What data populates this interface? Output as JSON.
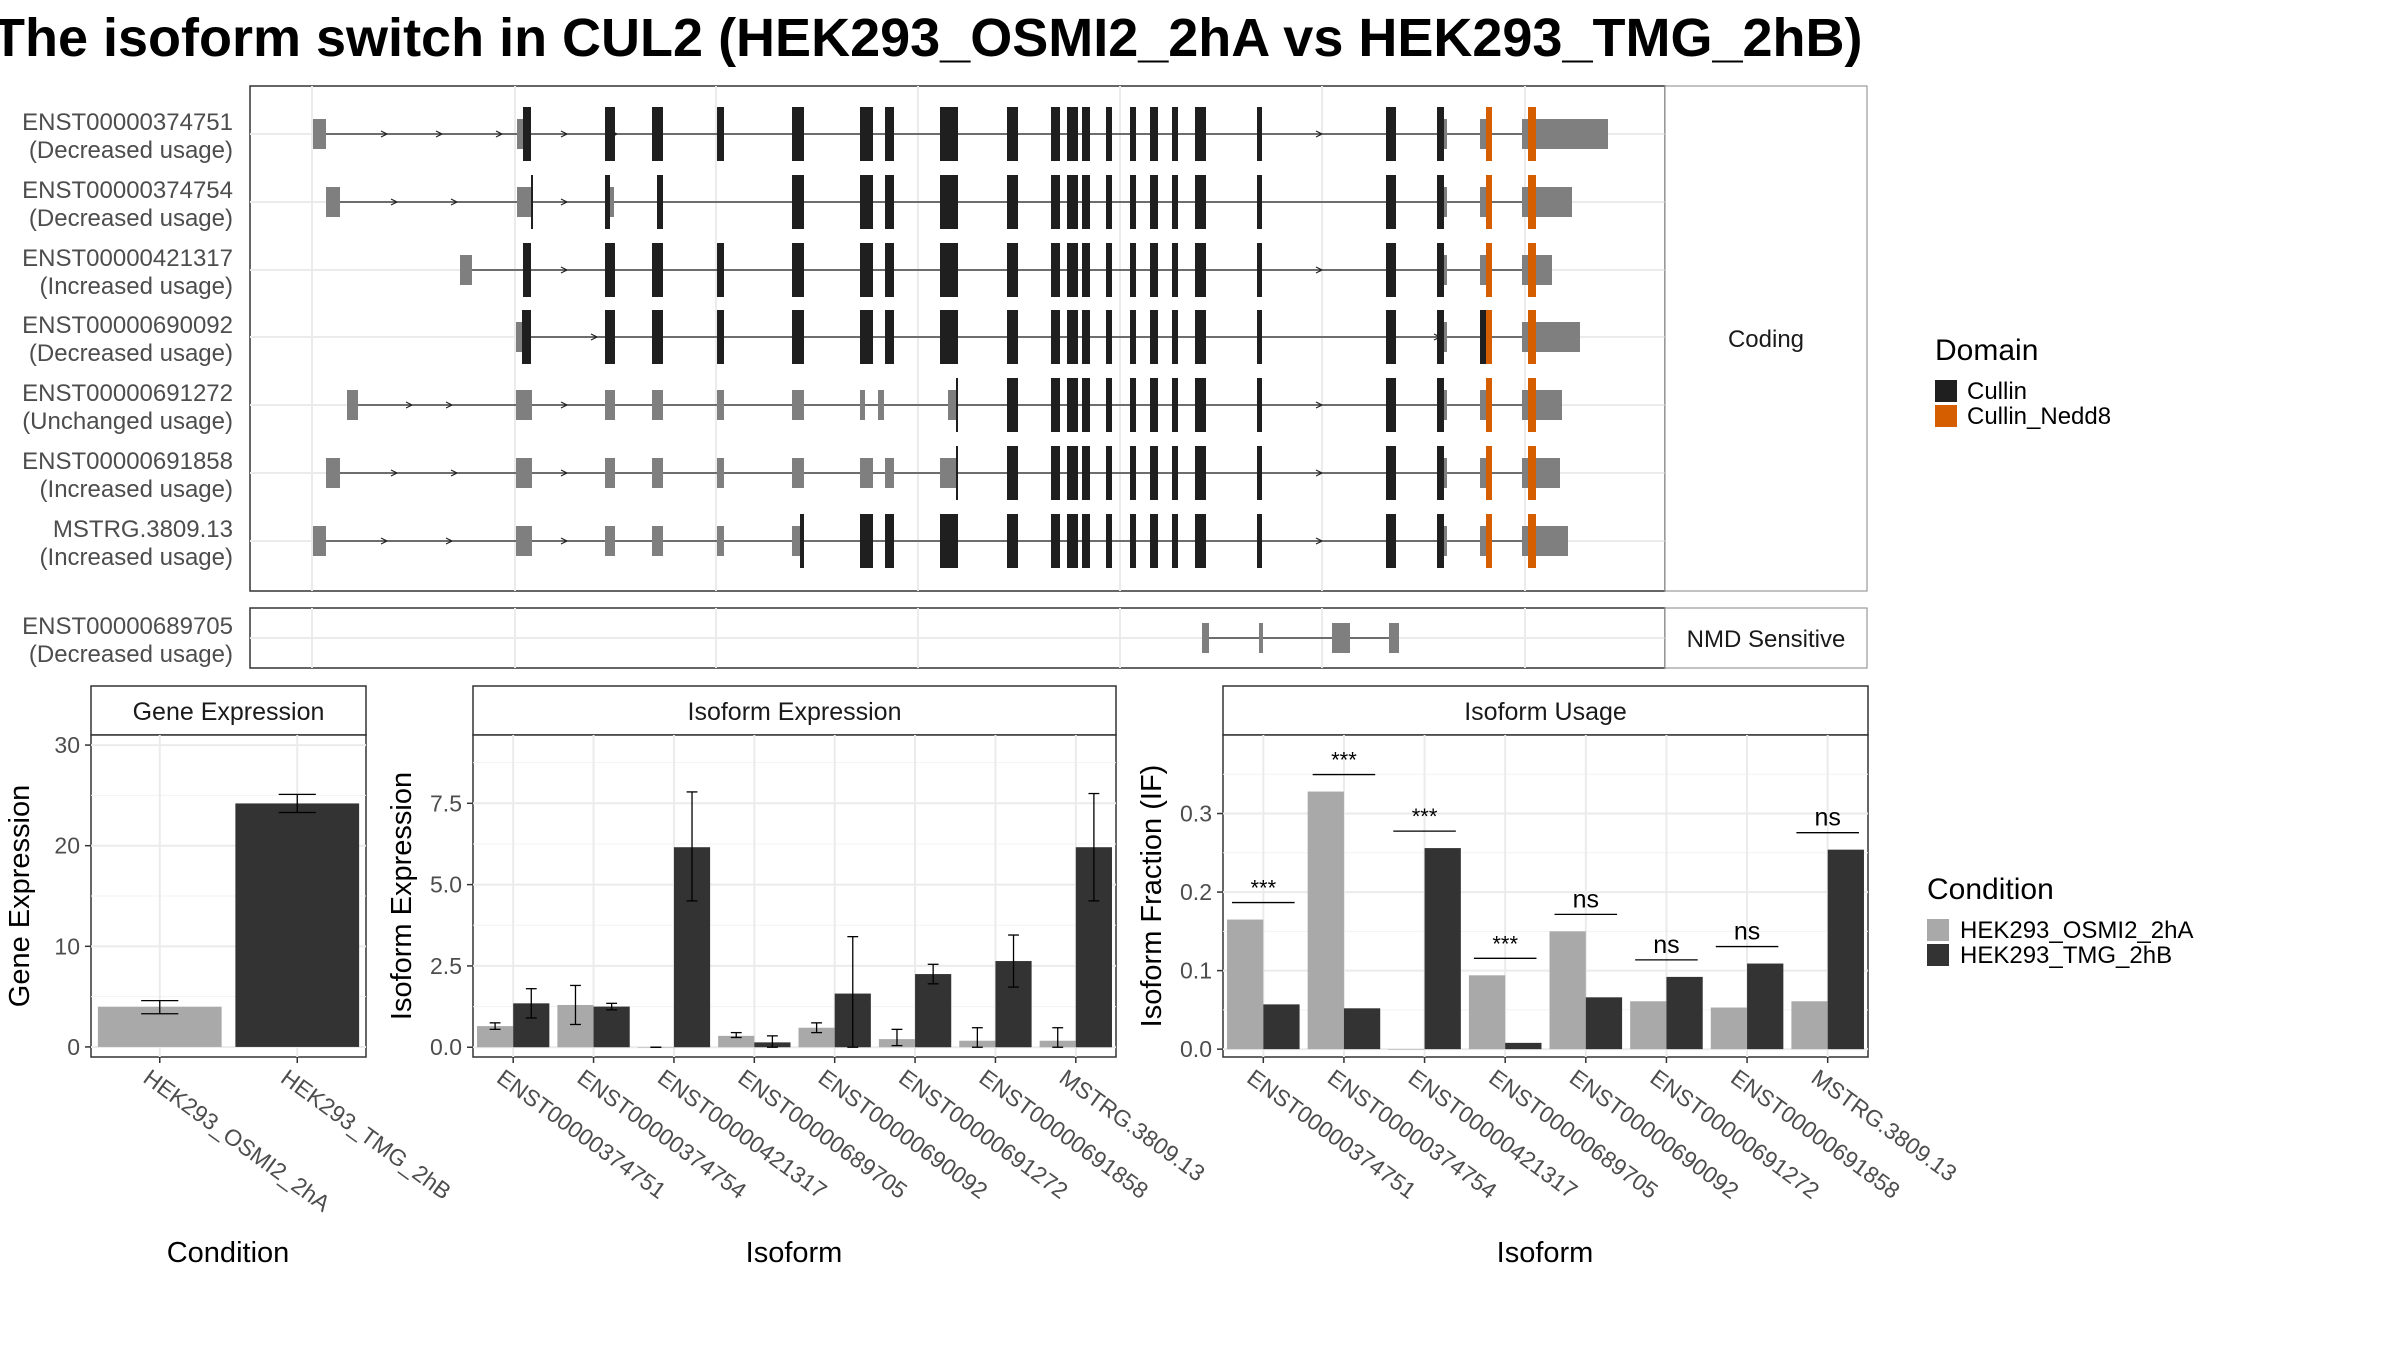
{
  "title": "The isoform switch in CUL2 (HEK293_OSMI2_2hA vs HEK293_TMG_2hB)",
  "colors": {
    "cullin": "#1f1f1f",
    "cullin_nedd8": "#d55e00",
    "noncoding_exon": "#7f7f7f",
    "cond_a": "#a9a9a9",
    "cond_b": "#333333"
  },
  "chart_data": [
    {
      "type": "gene-structure",
      "panels": [
        {
          "strip": "Coding",
          "transcripts": [
            {
              "id": "ENST00000374751",
              "usage": "(Decreased usage)"
            },
            {
              "id": "ENST00000374754",
              "usage": "(Decreased usage)"
            },
            {
              "id": "ENST00000421317",
              "usage": "(Increased usage)"
            },
            {
              "id": "ENST00000690092",
              "usage": "(Decreased usage)"
            },
            {
              "id": "ENST00000691272",
              "usage": "(Unchanged usage)"
            },
            {
              "id": "ENST00000691858",
              "usage": "(Increased usage)"
            },
            {
              "id": "MSTRG.3809.13",
              "usage": "(Increased usage)"
            }
          ]
        },
        {
          "strip": "NMD Sensitive",
          "transcripts": [
            {
              "id": "ENST00000689705",
              "usage": "(Decreased usage)"
            }
          ]
        }
      ],
      "legend": {
        "title": "Domain",
        "items": [
          "Cullin",
          "Cullin_Nedd8"
        ],
        "position": "right"
      }
    },
    {
      "type": "bar",
      "title": "Gene Expression",
      "xlabel": "Condition",
      "ylabel": "Gene Expression",
      "categories": [
        "HEK293_OSMI2_2hA",
        "HEK293_TMG_2hB"
      ],
      "values": [
        4.0,
        24.2
      ],
      "errors": [
        [
          3.3,
          4.6
        ],
        [
          23.3,
          25.1
        ]
      ],
      "ylim": [
        -1,
        31
      ],
      "yticks": [
        0,
        10,
        20,
        30
      ]
    },
    {
      "type": "bar",
      "title": "Isoform Expression",
      "xlabel": "Isoform",
      "ylabel": "Isoform Expression",
      "categories": [
        "ENST00000374751",
        "ENST00000374754",
        "ENST00000421317",
        "ENST00000689705",
        "ENST00000690092",
        "ENST00000691272",
        "ENST00000691858",
        "MSTRG.3809.13"
      ],
      "series": [
        {
          "name": "HEK293_OSMI2_2hA",
          "values": [
            0.65,
            1.3,
            0.0,
            0.35,
            0.6,
            0.25,
            0.2,
            0.2
          ],
          "errors": [
            [
              0.55,
              0.75
            ],
            [
              0.7,
              1.9
            ],
            [
              0.0,
              0.0
            ],
            [
              0.3,
              0.45
            ],
            [
              0.45,
              0.75
            ],
            [
              0.05,
              0.55
            ],
            [
              0.0,
              0.6
            ],
            [
              0.0,
              0.6
            ]
          ]
        },
        {
          "name": "HEK293_TMG_2hB",
          "values": [
            1.35,
            1.25,
            6.15,
            0.15,
            1.65,
            2.25,
            2.65,
            6.15
          ],
          "errors": [
            [
              0.9,
              1.8
            ],
            [
              1.15,
              1.35
            ],
            [
              4.5,
              7.85
            ],
            [
              0.0,
              0.35
            ],
            [
              0.0,
              3.4
            ],
            [
              1.95,
              2.55
            ],
            [
              1.85,
              3.45
            ],
            [
              4.5,
              7.8
            ]
          ]
        }
      ],
      "ylim": [
        -0.3,
        9.6
      ],
      "yticks": [
        "0.0",
        "2.5",
        "5.0",
        "7.5"
      ]
    },
    {
      "type": "bar",
      "title": "Isoform Usage",
      "xlabel": "Isoform",
      "ylabel": "Isoform Fraction (IF)",
      "categories": [
        "ENST00000374751",
        "ENST00000374754",
        "ENST00000421317",
        "ENST00000689705",
        "ENST00000690092",
        "ENST00000691272",
        "ENST00000691858",
        "MSTRG.3809.13"
      ],
      "series": [
        {
          "name": "HEK293_OSMI2_2hA",
          "values": [
            0.165,
            0.328,
            0.0,
            0.094,
            0.15,
            0.061,
            0.053,
            0.061
          ]
        },
        {
          "name": "HEK293_TMG_2hB",
          "values": [
            0.057,
            0.052,
            0.256,
            0.008,
            0.066,
            0.092,
            0.109,
            0.254
          ]
        }
      ],
      "significance": [
        "***",
        "***",
        "***",
        "***",
        "ns",
        "ns",
        "ns",
        "ns"
      ],
      "ylim": [
        -0.01,
        0.4
      ],
      "yticks": [
        "0.0",
        "0.1",
        "0.2",
        "0.3"
      ],
      "legend": {
        "title": "Condition",
        "items": [
          "HEK293_OSMI2_2hA",
          "HEK293_TMG_2hB"
        ],
        "position": "right"
      }
    }
  ]
}
